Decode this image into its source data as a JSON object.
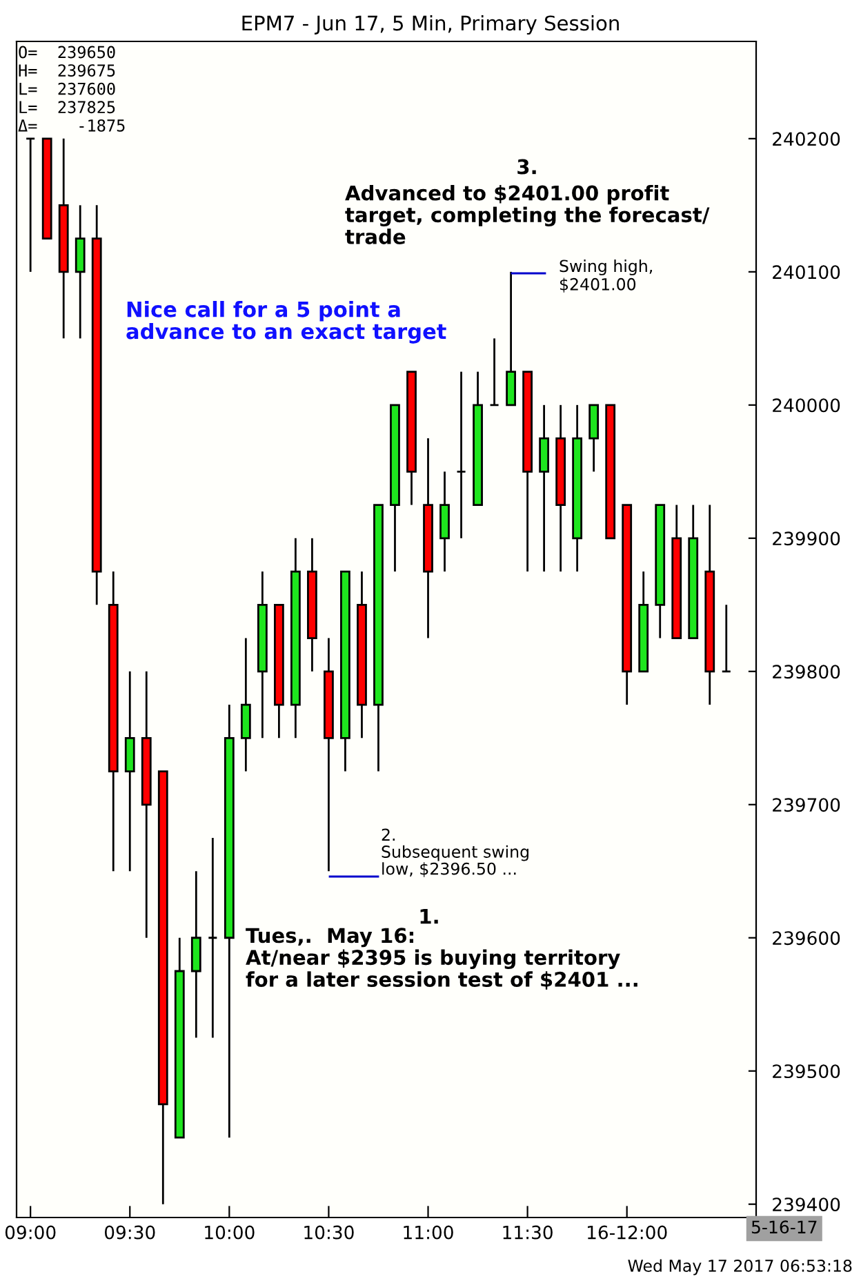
{
  "chart_data": {
    "type": "candlestick",
    "title": "EPM7 - Jun 17, 5 Min, Primary Session",
    "x": [
      9,
      9.0833,
      9.1667,
      9.25,
      9.3333,
      9.4167,
      9.5,
      9.5833,
      9.6667,
      9.75,
      9.8333,
      9.9167,
      10,
      10.0833,
      10.1667,
      10.25,
      10.3333,
      10.4167,
      10.5,
      10.5833,
      10.6667,
      10.75,
      10.8333,
      10.9167,
      11,
      11.0833,
      11.1667,
      11.25,
      11.3333,
      11.4167,
      11.5,
      11.5833,
      11.6667,
      11.75,
      11.8333,
      11.9167,
      12,
      12.0833,
      12.1667,
      12.25,
      12.3333,
      12.4167,
      12.5
    ],
    "ohlc": [
      [
        240200,
        240200,
        240100,
        240200
      ],
      [
        240200,
        240200,
        240125,
        240125
      ],
      [
        240150,
        240200,
        240050,
        240100
      ],
      [
        240100,
        240150,
        240050,
        240125
      ],
      [
        240125,
        240150,
        239850,
        239875
      ],
      [
        239850,
        239875,
        239650,
        239725
      ],
      [
        239725,
        239800,
        239650,
        239750
      ],
      [
        239750,
        239800,
        239600,
        239700
      ],
      [
        239725,
        239725,
        239400,
        239475
      ],
      [
        239450,
        239600,
        239450,
        239575
      ],
      [
        239575,
        239650,
        239525,
        239600
      ],
      [
        239600,
        239675,
        239525,
        239600
      ],
      [
        239600,
        239775,
        239450,
        239750
      ],
      [
        239750,
        239825,
        239725,
        239775
      ],
      [
        239800,
        239875,
        239750,
        239850
      ],
      [
        239850,
        239850,
        239750,
        239775
      ],
      [
        239775,
        239900,
        239750,
        239875
      ],
      [
        239875,
        239900,
        239800,
        239825
      ],
      [
        239800,
        239825,
        239650,
        239750
      ],
      [
        239750,
        239875,
        239725,
        239875
      ],
      [
        239850,
        239875,
        239750,
        239775
      ],
      [
        239775,
        239925,
        239725,
        239925
      ],
      [
        239925,
        240000,
        239875,
        240000
      ],
      [
        240025,
        240025,
        239925,
        239950
      ],
      [
        239925,
        239975,
        239825,
        239875
      ],
      [
        239900,
        239950,
        239875,
        239925
      ],
      [
        239950,
        240025,
        239900,
        239950
      ],
      [
        239925,
        240025,
        239925,
        240000
      ],
      [
        240000,
        240050,
        240000,
        240000
      ],
      [
        240000,
        240100,
        240000,
        240025
      ],
      [
        240025,
        240025,
        239875,
        239950
      ],
      [
        239950,
        240000,
        239875,
        239975
      ],
      [
        239975,
        240000,
        239875,
        239925
      ],
      [
        239900,
        240000,
        239875,
        239975
      ],
      [
        239975,
        240000,
        239950,
        240000
      ],
      [
        240000,
        240000,
        239900,
        239900
      ],
      [
        239925,
        239925,
        239775,
        239800
      ],
      [
        239800,
        239875,
        239800,
        239850
      ],
      [
        239850,
        239925,
        239825,
        239925
      ],
      [
        239900,
        239925,
        239825,
        239825
      ],
      [
        239825,
        239925,
        239825,
        239900
      ],
      [
        239875,
        239925,
        239775,
        239800
      ],
      [
        239800,
        239850,
        239800,
        239800
      ]
    ],
    "colors": [
      "#000000",
      "#ff0000",
      "#ff0000",
      "#1ee51e",
      "#ff0000",
      "#ff0000",
      "#1ee51e",
      "#ff0000",
      "#ff0000",
      "#1ee51e",
      "#1ee51e",
      "#000000",
      "#1ee51e",
      "#1ee51e",
      "#1ee51e",
      "#ff0000",
      "#1ee51e",
      "#ff0000",
      "#ff0000",
      "#1ee51e",
      "#ff0000",
      "#1ee51e",
      "#1ee51e",
      "#ff0000",
      "#ff0000",
      "#1ee51e",
      "#000000",
      "#1ee51e",
      "#000000",
      "#1ee51e",
      "#ff0000",
      "#1ee51e",
      "#ff0000",
      "#1ee51e",
      "#1ee51e",
      "#ff0000",
      "#ff0000",
      "#1ee51e",
      "#1ee51e",
      "#ff0000",
      "#1ee51e",
      "#ff0000",
      "#000000"
    ],
    "xlim": [
      8.93,
      12.65
    ],
    "xticks": [
      {
        "value": 9,
        "label": "09:00"
      },
      {
        "value": 9.5,
        "label": "09:30"
      },
      {
        "value": 10,
        "label": "10:00"
      },
      {
        "value": 10.5,
        "label": "10:30"
      },
      {
        "value": 11,
        "label": "11:00"
      },
      {
        "value": 11.5,
        "label": "11:30"
      },
      {
        "value": 12,
        "label": "16-12:00"
      }
    ],
    "ylim": [
      239390,
      240273
    ],
    "yticks": [
      239400,
      239500,
      239600,
      239700,
      239800,
      239900,
      240000,
      240100,
      240200
    ],
    "grid": false,
    "annotations": [
      "O=  239650\nH=  239675\nL=  237600\nL=  237825\nΔ=    -1875",
      "3.",
      "Advanced to $2401.00 profit\ntarget, completing the forecast/\ntrade",
      "Nice call for a 5 point a\nadvance to an exact target",
      "1.",
      "Tues,.  May 16:\nAt/near $2395 is buying territory\nfor a later session test of $2401 ...",
      "5-16-17",
      "Wed May 17 2017 06:53:18",
      "Swing high,\n$2401.00",
      "2.\nSubsequent swing\nlow, $2396.50 ..."
    ]
  }
}
